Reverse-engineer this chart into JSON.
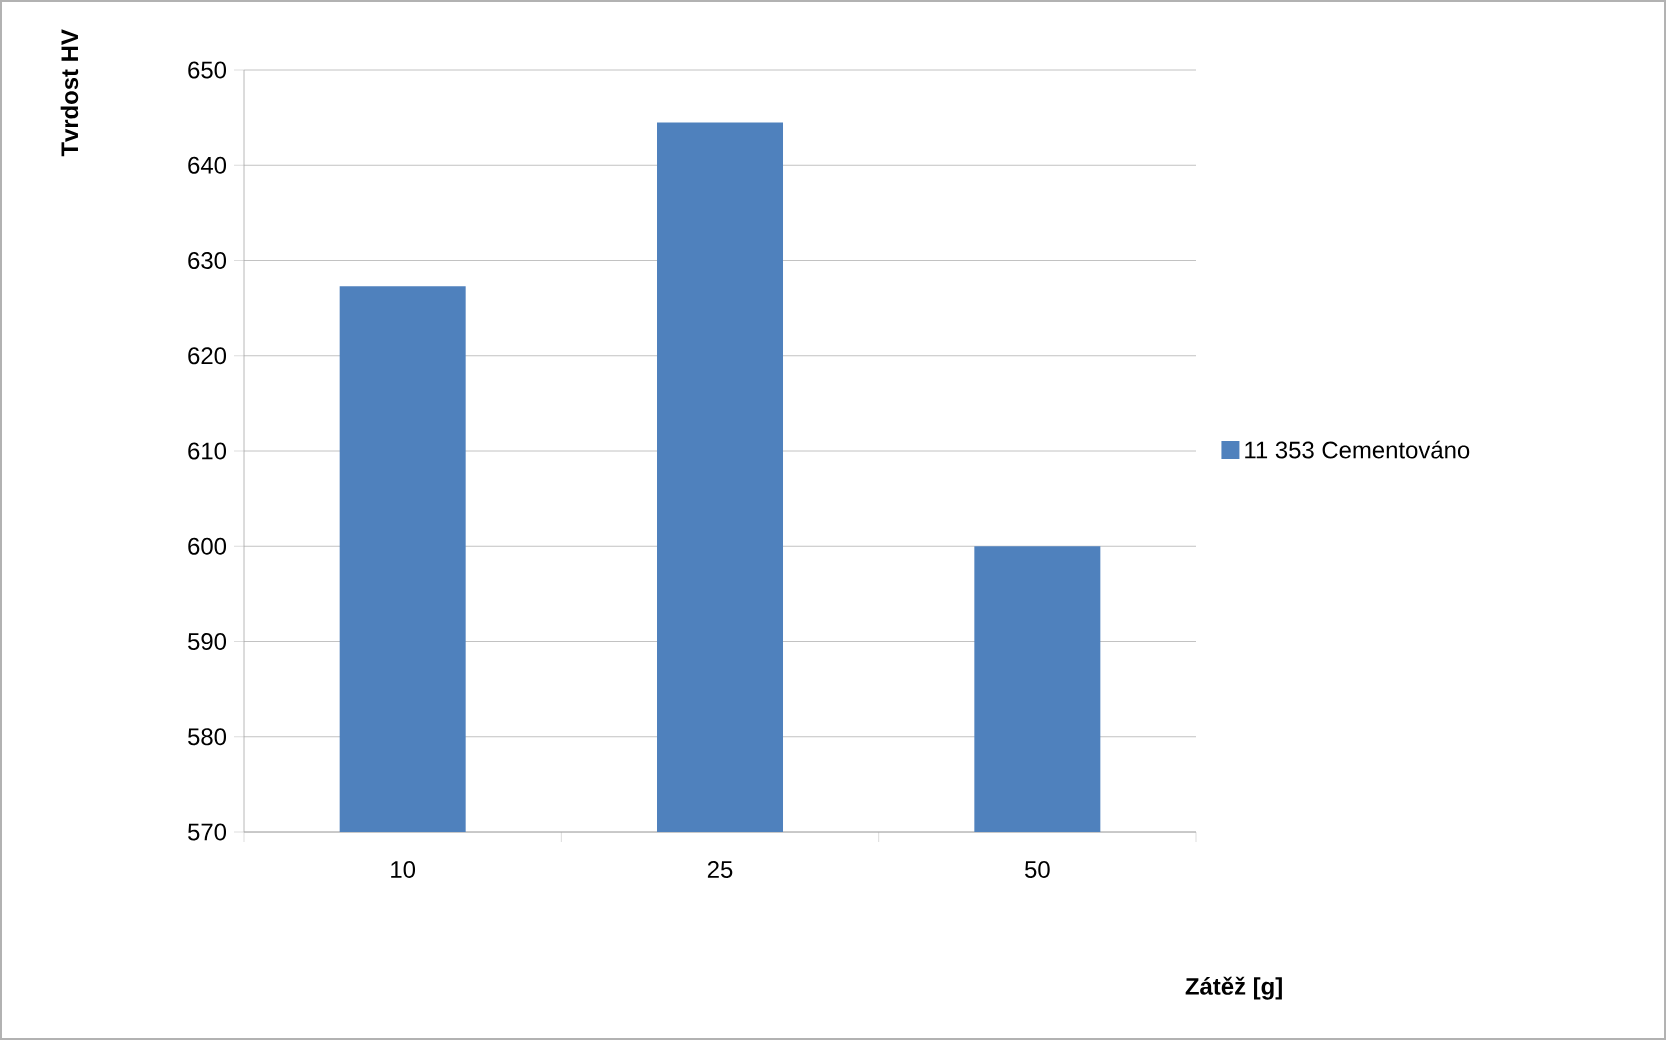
{
  "chart_data": {
    "type": "bar",
    "xlabel": "Zátěž [g]",
    "ylabel": "Tvrdost HV",
    "categories": [
      "10",
      "25",
      "50"
    ],
    "series": [
      {
        "name": "11 353 Cementováno",
        "color": "#4f81bd",
        "values": [
          627.3,
          644.5,
          600
        ]
      }
    ],
    "ylim": [
      570,
      650
    ],
    "yticks": [
      570,
      580,
      590,
      600,
      610,
      620,
      630,
      640,
      650
    ],
    "grid": "y",
    "legend": "right"
  }
}
